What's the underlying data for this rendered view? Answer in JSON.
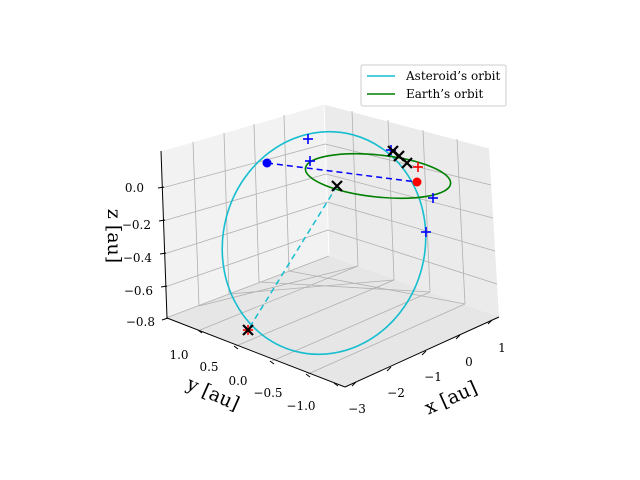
{
  "chart_data": {
    "type": "3d-line",
    "title": "",
    "xlabel": "x [au]",
    "ylabel": "y [au]",
    "zlabel": "z [au]",
    "xlim": [
      -3.2,
      1.2
    ],
    "ylim": [
      -1.2,
      1.2
    ],
    "zlim": [
      -0.8,
      0.15
    ],
    "xticks": [
      "−3",
      "−2",
      "−1",
      "0",
      "1"
    ],
    "yticks": [
      "1.0",
      "0.5",
      "0.0",
      "−0.5",
      "−1.0"
    ],
    "zticks": [
      "0.0",
      "−0.2",
      "−0.4",
      "−0.6",
      "−0.8"
    ],
    "grid": true,
    "legend_position": "top-right",
    "series": [
      {
        "name": "Asteroid’s orbit",
        "color": "#17becf",
        "style": "solid",
        "description": "tilted ellipse, semi-major ~1.6 au, spanning x from about -2.8 to 0.6 and z from about -0.8 to 0.1"
      },
      {
        "name": "Earth’s orbit",
        "color": "#008000",
        "style": "solid",
        "description": "circle of radius 1 au in the z = 0 plane"
      }
    ],
    "transfer_lines": [
      {
        "color": "#0000ff",
        "style": "dashed",
        "from": "asteroid node (blue dot)",
        "to": "Earth (red dot)"
      },
      {
        "color": "#17becf",
        "style": "dashed",
        "from": "intersection marker (top)",
        "to": "asteroid perihelion marker (bottom)"
      }
    ],
    "markers": {
      "blue_dot": {
        "color": "#0000ff"
      },
      "red_dot": {
        "color": "#ff0000"
      },
      "plus_blue": {
        "color": "#0000ff",
        "count": 5
      },
      "plus_red": {
        "color": "#ff0000",
        "count": 2
      },
      "x_black": {
        "color": "#000000",
        "count": 5
      }
    }
  },
  "legend": {
    "asteroid_label": "Asteroid’s orbit",
    "earth_label": "Earth’s orbit",
    "asteroid_color": "#17becf",
    "earth_color": "#008000"
  }
}
